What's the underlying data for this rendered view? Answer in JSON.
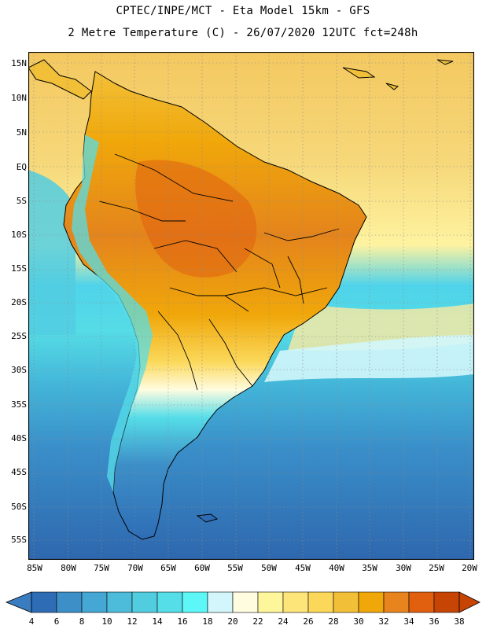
{
  "title": {
    "line1": "CPTEC/INPE/MCT -  Eta Model 15km - GFS",
    "line2": "2 Metre Temperature (C) - 26/07/2020 12UTC fct=248h"
  },
  "lat_labels": [
    "15N",
    "10N",
    "5N",
    "EQ",
    "5S",
    "10S",
    "15S",
    "20S",
    "25S",
    "30S",
    "35S",
    "40S",
    "45S",
    "50S",
    "55S"
  ],
  "lon_labels": [
    "85W",
    "80W",
    "75W",
    "70W",
    "65W",
    "60W",
    "55W",
    "50W",
    "45W",
    "40W",
    "35W",
    "30W",
    "25W",
    "20W"
  ],
  "colorbar": {
    "labels": [
      "4",
      "6",
      "8",
      "10",
      "12",
      "14",
      "16",
      "18",
      "20",
      "22",
      "24",
      "26",
      "28",
      "30",
      "32",
      "34",
      "36",
      "38"
    ],
    "colors": [
      "#3a7cc0",
      "#2e6db5",
      "#3d8fc8",
      "#45a7d4",
      "#4dbcda",
      "#52cde0",
      "#55dde8",
      "#5ef7f7",
      "#d2f6fb",
      "#fffce0",
      "#fef69a",
      "#fde57a",
      "#fbd85a",
      "#f2c038",
      "#f0a70a",
      "#e8841e",
      "#e06010",
      "#c64404"
    ],
    "low_color": "#3a7cc0",
    "high_color": "#c64404"
  },
  "colors": {
    "ocean_north": "#f6d87a",
    "ocean_south_deep": "#2e67ae",
    "land_hot": "#e4841c",
    "border": "#000000"
  }
}
